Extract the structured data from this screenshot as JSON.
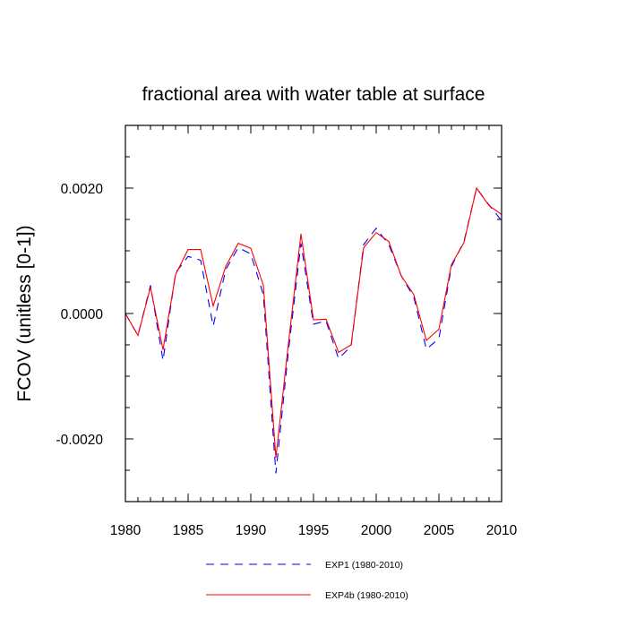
{
  "chart_data": {
    "type": "line",
    "title": "fractional area with water table at surface",
    "xlabel": "",
    "ylabel": "FCOV  (unitless [0-1])",
    "xlim": [
      1980,
      2010
    ],
    "ylim": [
      -0.003,
      0.003
    ],
    "xticks": [
      1980,
      1985,
      1990,
      1995,
      2000,
      2005,
      2010
    ],
    "xtick_labels": [
      "1980",
      "1985",
      "1990",
      "1995",
      "2000",
      "2005",
      "2010"
    ],
    "yticks": [
      -0.002,
      0.0,
      0.002
    ],
    "ytick_labels": [
      "-0.0020",
      "0.0000",
      "0.0020"
    ],
    "grid": false,
    "legend_position": "bottom",
    "x": [
      1980,
      1981,
      1982,
      1983,
      1984,
      1985,
      1986,
      1987,
      1988,
      1989,
      1990,
      1991,
      1992,
      1993,
      1994,
      1995,
      1996,
      1997,
      1998,
      1999,
      2000,
      2001,
      2002,
      2003,
      2004,
      2005,
      2006,
      2007,
      2008,
      2009,
      2010
    ],
    "series": [
      {
        "name": "EXP1 (1980-2010)",
        "color": "#0000ff",
        "dash": "dashed",
        "values": [
          0.0,
          -0.00035,
          0.00045,
          -0.00075,
          0.00065,
          0.00091,
          0.00085,
          -0.0002,
          0.0007,
          0.00105,
          0.00095,
          0.0003,
          -0.00255,
          -0.0006,
          0.00112,
          -0.00017,
          -0.00012,
          -0.00072,
          -0.00052,
          0.0011,
          0.00136,
          0.0011,
          0.0006,
          0.00026,
          -0.00057,
          -0.0004,
          0.00075,
          0.00115,
          0.002,
          0.00173,
          0.00148
        ]
      },
      {
        "name": "EXP4b (1980-2010)",
        "color": "#ff0000",
        "dash": "solid",
        "values": [
          0.0,
          -0.00035,
          0.00042,
          -0.00058,
          0.00062,
          0.00102,
          0.00102,
          0.00012,
          0.00075,
          0.00112,
          0.00104,
          0.00045,
          -0.0023,
          -0.00048,
          0.00127,
          -0.0001,
          -9e-05,
          -0.00062,
          -0.0005,
          0.00105,
          0.00129,
          0.00115,
          0.0006,
          0.0003,
          -0.00043,
          -0.00025,
          0.00078,
          0.00113,
          0.002,
          0.00172,
          0.00158
        ]
      }
    ]
  }
}
